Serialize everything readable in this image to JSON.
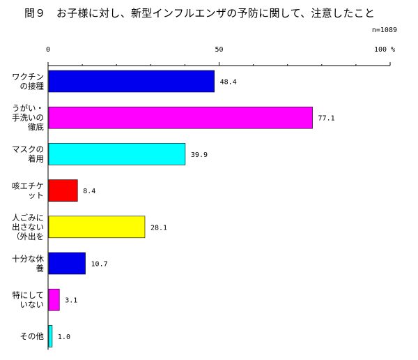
{
  "chart_data": {
    "type": "bar",
    "orientation": "horizontal",
    "title": "問９　お子様に対し、新型インフルエンザの予防に関して、注意したこと",
    "note": "n=1089",
    "x_ticks": [
      "0",
      "50",
      "100 %"
    ],
    "xlim": [
      0,
      100
    ],
    "categories": [
      [
        "ワクチン",
        "の接種"
      ],
      [
        "うがい・",
        "手洗いの",
        "徹底"
      ],
      [
        "マスクの",
        "着用"
      ],
      [
        "咳エチケ",
        "ット"
      ],
      [
        "人ごみに",
        "出さない",
        "（外出を"
      ],
      [
        "十分な休",
        "養"
      ],
      [
        "特にして",
        "いない"
      ],
      [
        "その他"
      ]
    ],
    "values": [
      48.4,
      77.1,
      39.9,
      8.4,
      28.1,
      10.7,
      3.1,
      1.0
    ],
    "value_labels": [
      "48.4",
      "77.1",
      "39.9",
      "8.4",
      "28.1",
      "10.7",
      "3.1",
      "1.0"
    ],
    "colors": [
      "#0000ee",
      "#ff00ff",
      "#00ffff",
      "#ff0000",
      "#ffff00",
      "#0000ee",
      "#ff00ff",
      "#00ffff"
    ],
    "grid": false,
    "legend": "none"
  }
}
